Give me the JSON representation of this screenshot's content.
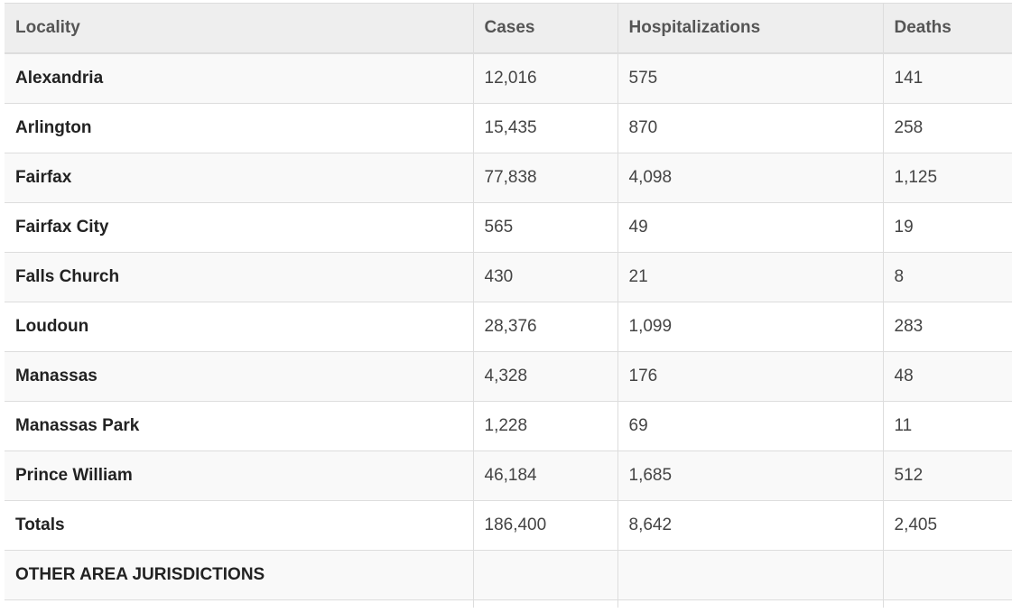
{
  "table": {
    "headers": {
      "locality": "Locality",
      "cases": "Cases",
      "hospitalizations": "Hospitalizations",
      "deaths": "Deaths"
    },
    "rows": [
      {
        "locality": "Alexandria",
        "cases": "12,016",
        "hospitalizations": "575",
        "deaths": "141"
      },
      {
        "locality": "Arlington",
        "cases": "15,435",
        "hospitalizations": "870",
        "deaths": "258"
      },
      {
        "locality": "Fairfax",
        "cases": "77,838",
        "hospitalizations": "4,098",
        "deaths": "1,125"
      },
      {
        "locality": "Fairfax City",
        "cases": "565",
        "hospitalizations": "49",
        "deaths": "19"
      },
      {
        "locality": "Falls Church",
        "cases": "430",
        "hospitalizations": "21",
        "deaths": "8"
      },
      {
        "locality": "Loudoun",
        "cases": "28,376",
        "hospitalizations": "1,099",
        "deaths": "283"
      },
      {
        "locality": "Manassas",
        "cases": "4,328",
        "hospitalizations": "176",
        "deaths": "48"
      },
      {
        "locality": "Manassas Park",
        "cases": "1,228",
        "hospitalizations": "69",
        "deaths": "11"
      },
      {
        "locality": "Prince William",
        "cases": "46,184",
        "hospitalizations": "1,685",
        "deaths": "512"
      },
      {
        "locality": "Totals",
        "cases": "186,400",
        "hospitalizations": "8,642",
        "deaths": "2,405"
      }
    ],
    "section_label": "OTHER AREA JURISDICTIONS"
  },
  "colors": {
    "header_bg": "#eeeeee",
    "stripe_bg": "#f9f9f9",
    "border": "#dddddd",
    "text": "#333333"
  }
}
